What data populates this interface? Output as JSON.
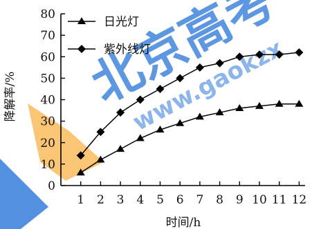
{
  "chart_data": {
    "type": "line",
    "xlabel": "时间/h",
    "ylabel": "降解率/%",
    "x": [
      1,
      2,
      3,
      4,
      5,
      6,
      7,
      8,
      9,
      10,
      11,
      12
    ],
    "xlim": [
      0,
      12.3
    ],
    "ylim": [
      0,
      80
    ],
    "yticks": [
      0,
      10,
      20,
      30,
      40,
      50,
      60,
      70,
      80
    ],
    "grid": false,
    "legend_position": "top-left",
    "series": [
      {
        "name": "日光灯",
        "marker": "triangle",
        "values": [
          6,
          12,
          17,
          22,
          26,
          29,
          32,
          34,
          36,
          37,
          38,
          38
        ]
      },
      {
        "name": "紫外线灯",
        "marker": "diamond",
        "values": [
          14,
          25,
          34,
          40,
          45,
          50,
          55,
          57,
          60,
          61,
          61,
          62
        ]
      }
    ]
  },
  "watermark": {
    "text_main": "北京高考",
    "text_site": "www.gaokzx",
    "color_blue": "#1e6fd6",
    "color_orange": "#f7b24a"
  }
}
